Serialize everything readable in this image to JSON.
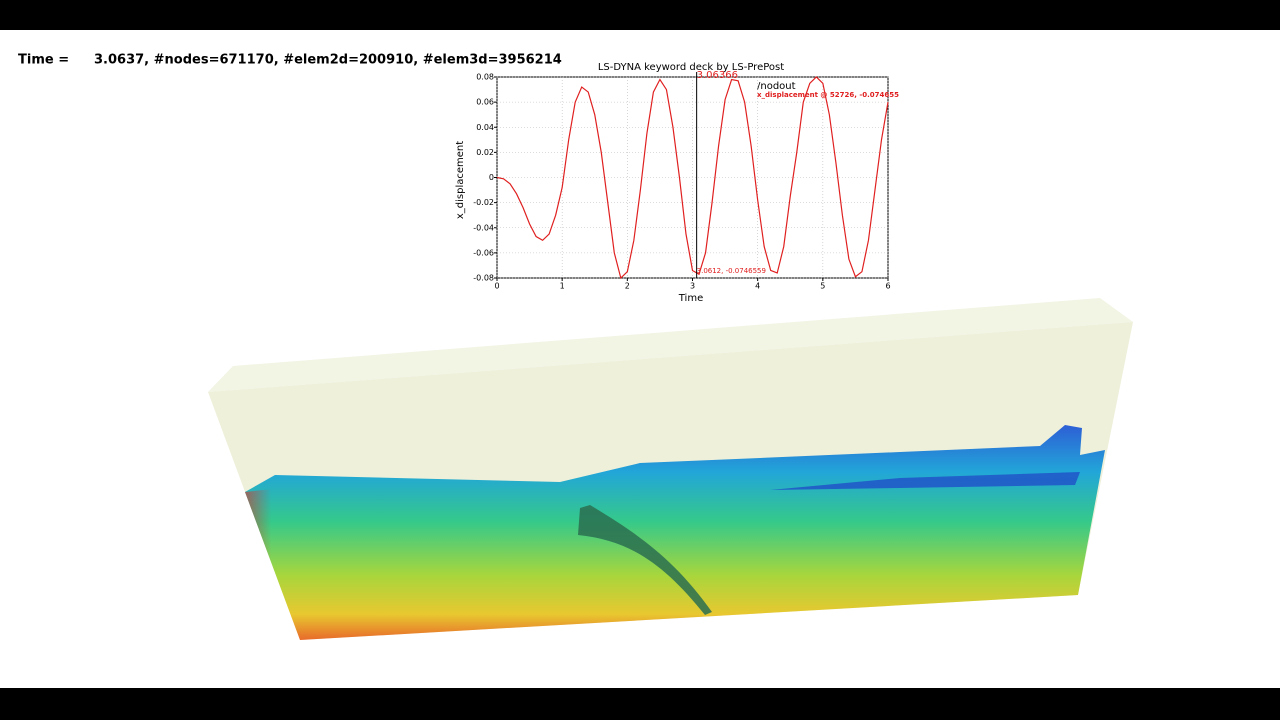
{
  "header": {
    "label": "Time =",
    "info": "3.0637, #nodes=671170, #elem2d=200910, #elem3d=3956214"
  },
  "chart_data": {
    "type": "line",
    "title": "LS-DYNA keyword deck by LS-PrePost",
    "x_label": "Time",
    "y_label": "x_displacement",
    "legend_title": "/nodout",
    "cursor": 3.06366,
    "point_label": "3.0612, -0.0746559",
    "xlim": [
      0,
      6
    ],
    "ylim": [
      -0.08,
      0.08
    ],
    "xticks": [
      0,
      1,
      2,
      3,
      4,
      5,
      6
    ],
    "yticks": [
      0.08,
      0.06,
      0.04,
      0.02,
      0,
      -0.02,
      -0.04,
      -0.06,
      -0.08
    ],
    "grid": true,
    "x": [
      0,
      0.1,
      0.2,
      0.3,
      0.4,
      0.5,
      0.6,
      0.7,
      0.8,
      0.9,
      1.0,
      1.1,
      1.2,
      1.3,
      1.4,
      1.5,
      1.6,
      1.7,
      1.8,
      1.9,
      2.0,
      2.1,
      2.2,
      2.3,
      2.4,
      2.5,
      2.6,
      2.7,
      2.8,
      2.9,
      3.0,
      3.1,
      3.2,
      3.3,
      3.4,
      3.5,
      3.6,
      3.7,
      3.8,
      3.9,
      4.0,
      4.1,
      4.2,
      4.3,
      4.4,
      4.5,
      4.6,
      4.7,
      4.8,
      4.9,
      5.0,
      5.1,
      5.2,
      5.3,
      5.4,
      5.5,
      5.6,
      5.7,
      5.8,
      5.9,
      6.0
    ],
    "series": [
      {
        "name": "x_displacement @ 52726, -0.074655",
        "color": "#e02020",
        "values": [
          0,
          -0.001,
          -0.005,
          -0.013,
          -0.024,
          -0.037,
          -0.047,
          -0.05,
          -0.045,
          -0.03,
          -0.008,
          0.03,
          0.06,
          0.072,
          0.068,
          0.05,
          0.02,
          -0.02,
          -0.06,
          -0.08,
          -0.075,
          -0.05,
          -0.01,
          0.035,
          0.068,
          0.078,
          0.07,
          0.04,
          0.0,
          -0.045,
          -0.074,
          -0.077,
          -0.06,
          -0.02,
          0.025,
          0.062,
          0.078,
          0.077,
          0.06,
          0.025,
          -0.018,
          -0.055,
          -0.074,
          -0.076,
          -0.055,
          -0.015,
          0.02,
          0.06,
          0.075,
          0.08,
          0.075,
          0.05,
          0.012,
          -0.03,
          -0.065,
          -0.079,
          -0.075,
          -0.05,
          -0.01,
          0.03,
          0.06
        ]
      }
    ]
  }
}
